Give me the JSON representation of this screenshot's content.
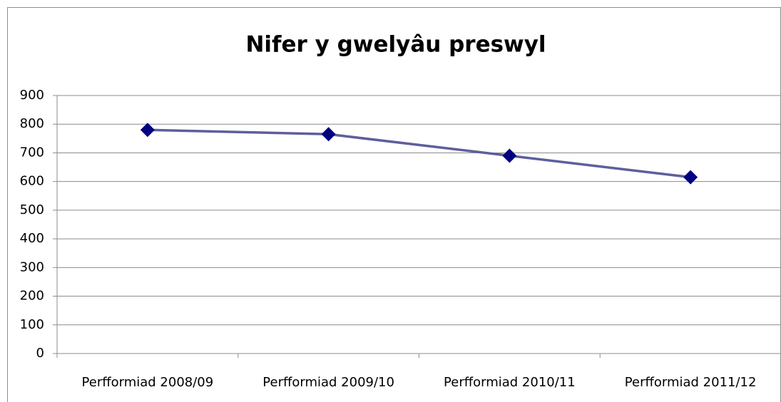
{
  "chart_data": {
    "type": "line",
    "title": "Nifer y gwelyâu preswyl",
    "categories": [
      "Perfformiad 2008/09",
      "Perfformiad 2009/10",
      "Perfformiad 2010/11",
      "Perfformiad 2011/12"
    ],
    "series": [
      {
        "name": "Nifer y gwelyâu preswyl",
        "color": "#5e5e9e",
        "marker_color": "#000080",
        "values": [
          780,
          765,
          690,
          615
        ]
      }
    ],
    "ylim": [
      0,
      900
    ],
    "yticks": [
      0,
      100,
      200,
      300,
      400,
      500,
      600,
      700,
      800,
      900
    ],
    "grid": true,
    "legend": false
  }
}
